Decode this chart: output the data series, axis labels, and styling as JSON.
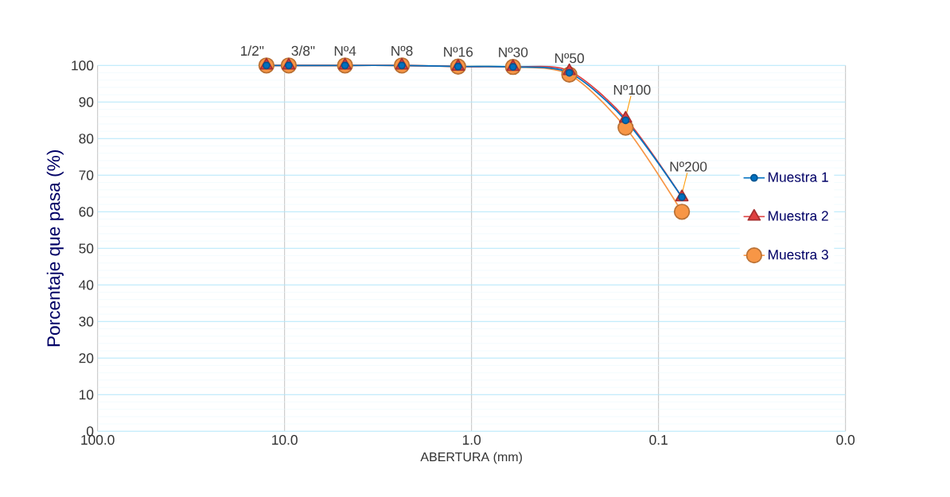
{
  "chart_data": {
    "type": "line",
    "xlabel": "ABERTURA (mm)",
    "ylabel": "Porcentaje que pasa (%)",
    "log": "x",
    "grid": true,
    "legend": "right",
    "line_style": "solid",
    "xlim": [
      100,
      0.01
    ],
    "ylim": [
      0,
      100
    ],
    "xticks": [
      {
        "value": 100,
        "label": "100.0"
      },
      {
        "value": 10,
        "label": "10.0"
      },
      {
        "value": 1,
        "label": "1.0"
      },
      {
        "value": 0.1,
        "label": "0.1"
      },
      {
        "value": 0.01,
        "label": "0.0"
      }
    ],
    "yticks": [
      0,
      10,
      20,
      30,
      40,
      50,
      60,
      70,
      80,
      90,
      100
    ],
    "x": [
      12.5,
      9.5,
      4.75,
      2.36,
      1.18,
      0.6,
      0.3,
      0.15,
      0.075
    ],
    "series": [
      {
        "name": "Muestra 1",
        "color": "#0070c0",
        "marker": "circle",
        "values": [
          100,
          100,
          100,
          100,
          99.7,
          99.6,
          98,
          85,
          64
        ]
      },
      {
        "name": "Muestra 2",
        "color": "#e04040",
        "marker": "triangle",
        "values": [
          100,
          100,
          100,
          100,
          99.7,
          99.6,
          98.5,
          85.5,
          64
        ]
      },
      {
        "name": "Muestra 3",
        "color": "#f79646",
        "marker": "circle",
        "values": [
          100,
          100,
          100,
          100,
          99.7,
          99.6,
          97.5,
          83,
          60
        ]
      }
    ],
    "annotations": [
      {
        "text": "1/2\"",
        "x": 12.5,
        "y": 100
      },
      {
        "text": "3/8\"",
        "x": 9.5,
        "y": 100
      },
      {
        "text": "Nº4",
        "x": 4.75,
        "y": 100
      },
      {
        "text": "Nº8",
        "x": 2.36,
        "y": 100
      },
      {
        "text": "Nº16",
        "x": 1.18,
        "y": 99.7
      },
      {
        "text": "Nº30",
        "x": 0.6,
        "y": 99.6
      },
      {
        "text": "Nº50",
        "x": 0.3,
        "y": 98
      },
      {
        "text": "Nº100",
        "x": 0.15,
        "y": 85
      },
      {
        "text": "Nº200",
        "x": 0.075,
        "y": 64
      }
    ]
  }
}
